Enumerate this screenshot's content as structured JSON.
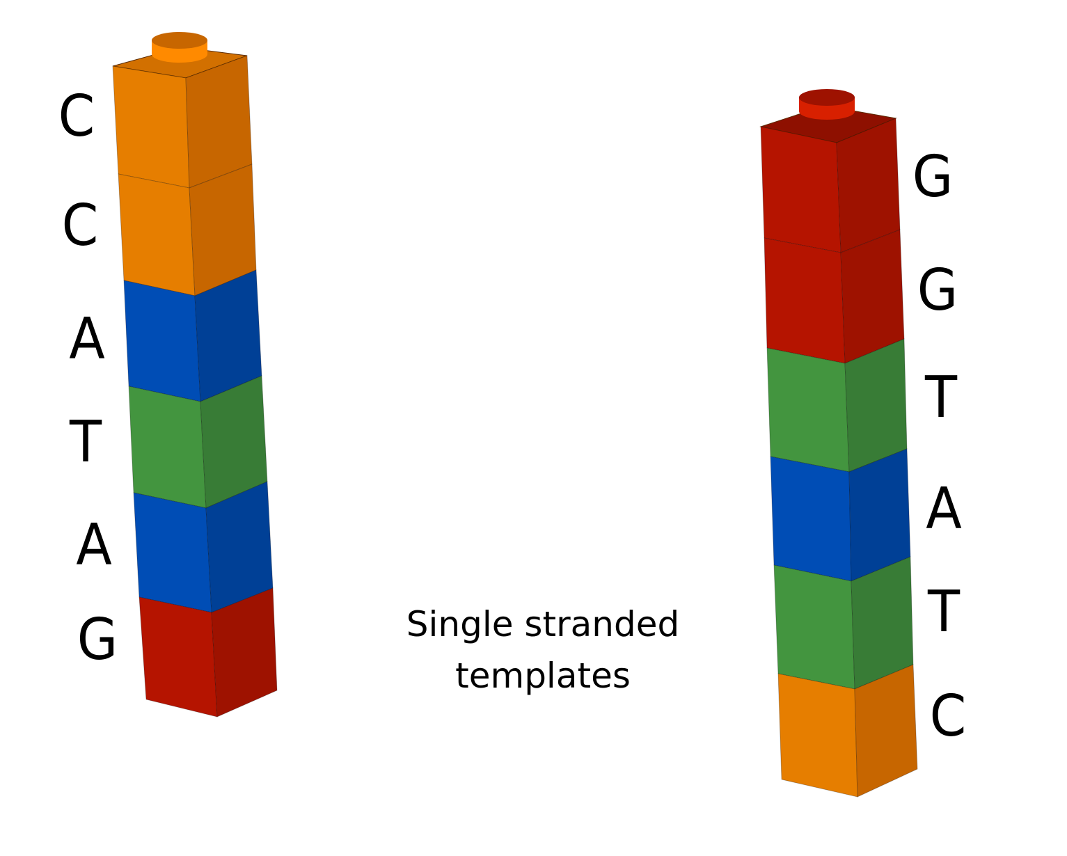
{
  "colors": {
    "C": {
      "front": "#E67E00",
      "side": "#C76600",
      "top": "#D27000",
      "stud": "#FF8A00"
    },
    "A": {
      "front": "#004DB5",
      "side": "#004096",
      "top": "#003A8C",
      "stud": "#1E66D0"
    },
    "T": {
      "front": "#43953F",
      "side": "#387C36",
      "top": "#2F6A2E",
      "stud": "#55A651"
    },
    "G": {
      "front": "#B51400",
      "side": "#9E1200",
      "top": "#8E1000",
      "stud": "#D82000"
    }
  },
  "left_strand": {
    "bases": [
      "C",
      "C",
      "A",
      "T",
      "A",
      "G"
    ]
  },
  "right_strand": {
    "bases": [
      "G",
      "G",
      "T",
      "A",
      "T",
      "C"
    ]
  },
  "caption": {
    "line1": "Single stranded",
    "line2": "templates"
  }
}
